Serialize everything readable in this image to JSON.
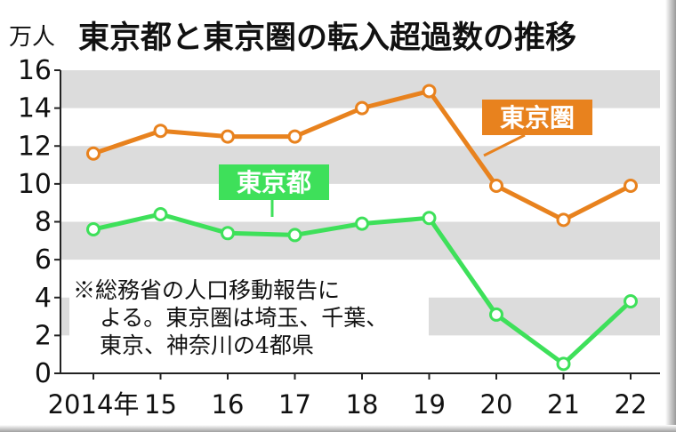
{
  "chart_data": {
    "type": "line",
    "title": "東京都と東京圏の転入超過数の推移",
    "unit_label": "万人",
    "x": [
      "2014年",
      "15",
      "16",
      "17",
      "18",
      "19",
      "20",
      "21",
      "22"
    ],
    "ylim": [
      0,
      16
    ],
    "yticks": [
      "0",
      "2",
      "4",
      "6",
      "8",
      "10",
      "12",
      "14",
      "16"
    ],
    "grid": "alternating horizontal gray bands",
    "series": [
      {
        "name": "東京圏",
        "color": "#e8821e",
        "values": [
          11.6,
          12.8,
          12.5,
          12.5,
          14.0,
          14.9,
          9.9,
          8.1,
          9.9
        ]
      },
      {
        "name": "東京都",
        "color": "#3ee05a",
        "values": [
          7.6,
          8.4,
          7.4,
          7.3,
          7.9,
          8.2,
          3.1,
          0.5,
          3.8
        ]
      }
    ],
    "note_lines": [
      "※総務省の人口移動報告に",
      "よる。東京圏は埼玉、千葉、",
      "東京、神奈川の4都県"
    ]
  }
}
